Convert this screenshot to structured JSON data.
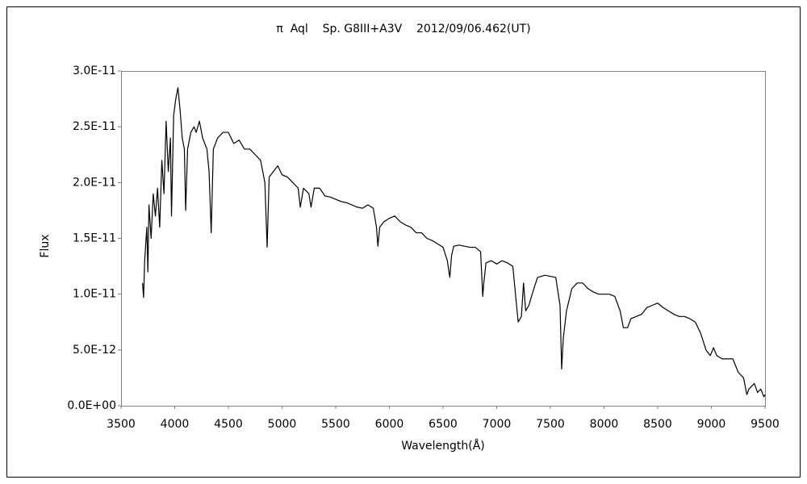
{
  "chart_data": {
    "type": "line",
    "title": "π  Aql    Sp. G8III+A3V    2012/09/06.462(UT)",
    "xlabel": "Wavelength(Å)",
    "ylabel": "Flux",
    "color": "#000000",
    "xlim": [
      3500,
      9500
    ],
    "xticks": [
      3500,
      4000,
      4500,
      5000,
      5500,
      6000,
      6500,
      7000,
      7500,
      8000,
      8500,
      9000,
      9500
    ],
    "ylim": [
      0,
      3e-11
    ],
    "yticks": [
      {
        "value": 0,
        "label": "0.0E+00"
      },
      {
        "value": 5e-12,
        "label": "5.0E-12"
      },
      {
        "value": 1e-11,
        "label": "1.0E-11"
      },
      {
        "value": 1.5e-11,
        "label": "1.5E-11"
      },
      {
        "value": 2e-11,
        "label": "2.0E-11"
      },
      {
        "value": 2.5e-11,
        "label": "2.5E-11"
      },
      {
        "value": 3e-11,
        "label": "3.0E-11"
      }
    ],
    "grid": false,
    "x": [
      3700,
      3710,
      3720,
      3740,
      3750,
      3760,
      3780,
      3800,
      3820,
      3840,
      3860,
      3880,
      3900,
      3920,
      3940,
      3960,
      3970,
      3990,
      4010,
      4030,
      4050,
      4070,
      4090,
      4102,
      4120,
      4150,
      4180,
      4200,
      4230,
      4260,
      4300,
      4320,
      4340,
      4360,
      4400,
      4450,
      4500,
      4550,
      4600,
      4650,
      4700,
      4750,
      4800,
      4840,
      4861,
      4880,
      4920,
      4960,
      5000,
      5050,
      5100,
      5150,
      5170,
      5200,
      5250,
      5270,
      5300,
      5350,
      5400,
      5450,
      5500,
      5550,
      5600,
      5650,
      5700,
      5750,
      5800,
      5850,
      5880,
      5893,
      5910,
      5950,
      6000,
      6050,
      6100,
      6150,
      6200,
      6250,
      6300,
      6350,
      6400,
      6450,
      6500,
      6540,
      6563,
      6580,
      6600,
      6650,
      6700,
      6750,
      6800,
      6850,
      6870,
      6880,
      6900,
      6950,
      7000,
      7050,
      7100,
      7150,
      7180,
      7200,
      7230,
      7250,
      7270,
      7300,
      7330,
      7380,
      7450,
      7500,
      7550,
      7590,
      7605,
      7620,
      7650,
      7700,
      7750,
      7800,
      7850,
      7900,
      7950,
      8000,
      8050,
      8100,
      8150,
      8180,
      8220,
      8250,
      8300,
      8350,
      8400,
      8450,
      8500,
      8550,
      8600,
      8650,
      8700,
      8750,
      8800,
      8850,
      8900,
      8950,
      8990,
      9020,
      9050,
      9100,
      9150,
      9200,
      9250,
      9300,
      9330,
      9350,
      9400,
      9430,
      9460,
      9490,
      9500
    ],
    "values": [
      1.1e-11,
      9.7e-12,
      1.3e-11,
      1.6e-11,
      1.2e-11,
      1.8e-11,
      1.5e-11,
      1.9e-11,
      1.7e-11,
      1.95e-11,
      1.6e-11,
      2.2e-11,
      1.9e-11,
      2.55e-11,
      2.1e-11,
      2.4e-11,
      1.7e-11,
      2.6e-11,
      2.75e-11,
      2.85e-11,
      2.65e-11,
      2.4e-11,
      2.3e-11,
      1.75e-11,
      2.3e-11,
      2.45e-11,
      2.5e-11,
      2.45e-11,
      2.55e-11,
      2.4e-11,
      2.3e-11,
      2.1e-11,
      1.55e-11,
      2.3e-11,
      2.4e-11,
      2.45e-11,
      2.45e-11,
      2.35e-11,
      2.38e-11,
      2.3e-11,
      2.3e-11,
      2.25e-11,
      2.2e-11,
      2e-11,
      1.42e-11,
      2.05e-11,
      2.1e-11,
      2.15e-11,
      2.07e-11,
      2.05e-11,
      2e-11,
      1.95e-11,
      1.78e-11,
      1.95e-11,
      1.9e-11,
      1.78e-11,
      1.95e-11,
      1.95e-11,
      1.88e-11,
      1.87e-11,
      1.85e-11,
      1.83e-11,
      1.82e-11,
      1.8e-11,
      1.78e-11,
      1.77e-11,
      1.8e-11,
      1.77e-11,
      1.6e-11,
      1.43e-11,
      1.6e-11,
      1.65e-11,
      1.68e-11,
      1.7e-11,
      1.65e-11,
      1.62e-11,
      1.6e-11,
      1.55e-11,
      1.55e-11,
      1.5e-11,
      1.48e-11,
      1.45e-11,
      1.42e-11,
      1.3e-11,
      1.15e-11,
      1.35e-11,
      1.43e-11,
      1.44e-11,
      1.43e-11,
      1.42e-11,
      1.42e-11,
      1.38e-11,
      9.8e-12,
      1.1e-11,
      1.28e-11,
      1.3e-11,
      1.27e-11,
      1.3e-11,
      1.28e-11,
      1.25e-11,
      9.5e-12,
      7.5e-12,
      8e-12,
      1.1e-11,
      8.5e-12,
      9e-12,
      1e-11,
      1.15e-11,
      1.17e-11,
      1.16e-11,
      1.15e-11,
      9e-12,
      3.3e-12,
      6e-12,
      8.5e-12,
      1.05e-11,
      1.1e-11,
      1.1e-11,
      1.05e-11,
      1.02e-11,
      1e-11,
      1e-11,
      1e-11,
      9.8e-12,
      8.5e-12,
      7e-12,
      7e-12,
      7.8e-12,
      8e-12,
      8.2e-12,
      8.8e-12,
      9e-12,
      9.2e-12,
      8.8e-12,
      8.5e-12,
      8.2e-12,
      8e-12,
      8e-12,
      7.8e-12,
      7.5e-12,
      6.5e-12,
      5e-12,
      4.5e-12,
      5.2e-12,
      4.5e-12,
      4.2e-12,
      4.2e-12,
      4.2e-12,
      3e-12,
      2.5e-12,
      1e-12,
      1.5e-12,
      2e-12,
      1.2e-12,
      1.5e-12,
      8e-13,
      1e-12
    ]
  }
}
